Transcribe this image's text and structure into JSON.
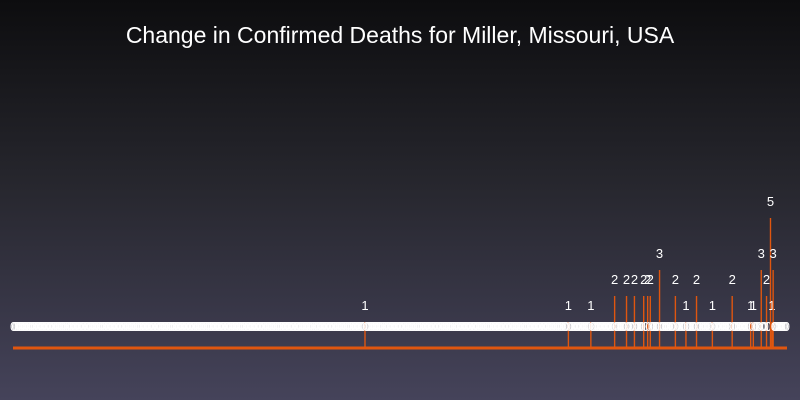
{
  "chart_data": {
    "type": "bar",
    "title": "Change in Confirmed Deaths for Miller, Missouri, USA",
    "xlabel": "",
    "ylabel": "",
    "ylim": [
      0,
      5
    ],
    "grid": false,
    "legend": "none",
    "bar_color": "#e0560f",
    "label_color": "#ffffff",
    "values": [
      0,
      0,
      0,
      0,
      0,
      0,
      0,
      0,
      0,
      0,
      0,
      0,
      0,
      0,
      0,
      0,
      0,
      0,
      0,
      0,
      0,
      0,
      0,
      0,
      0,
      0,
      0,
      0,
      0,
      0,
      0,
      0,
      0,
      0,
      0,
      0,
      0,
      0,
      0,
      0,
      0,
      0,
      0,
      0,
      0,
      0,
      0,
      0,
      0,
      0,
      0,
      0,
      0,
      0,
      0,
      0,
      0,
      0,
      0,
      0,
      0,
      0,
      0,
      0,
      0,
      0,
      0,
      0,
      0,
      0,
      0,
      0,
      0,
      0,
      0,
      0,
      0,
      0,
      0,
      0,
      0,
      0,
      0,
      0,
      0,
      0,
      0,
      0,
      0,
      0,
      0,
      0,
      0,
      0,
      0,
      0,
      0,
      0,
      0,
      0,
      0,
      0,
      0,
      0,
      0,
      0,
      0,
      0,
      0,
      0,
      0,
      0,
      0,
      0,
      0,
      0,
      0,
      0,
      0,
      0,
      0,
      0,
      0,
      0,
      0,
      0,
      0,
      0,
      0,
      0,
      0,
      0,
      0,
      0,
      0,
      0,
      0,
      0,
      0,
      0,
      0,
      0,
      0,
      0,
      0,
      0,
      0,
      0,
      0,
      0,
      0,
      0,
      0,
      0,
      0,
      0,
      0,
      0,
      0,
      0,
      0,
      0,
      0,
      0,
      0,
      0,
      0,
      0,
      0,
      0,
      0,
      0,
      0,
      0,
      0,
      0,
      0,
      0,
      0,
      0,
      0,
      0,
      0,
      0,
      0,
      0,
      0,
      0,
      0,
      0,
      0,
      0,
      0,
      0,
      0,
      0,
      0,
      0,
      0,
      0,
      0,
      0,
      0,
      0,
      0,
      0,
      0,
      0,
      0,
      0,
      0,
      0,
      0,
      0,
      0,
      0,
      0,
      0,
      0,
      0,
      0,
      0,
      0,
      0,
      0,
      0,
      0,
      0,
      0,
      0,
      0,
      0,
      0,
      0,
      0,
      0,
      0,
      0,
      0,
      0,
      0,
      0,
      0,
      0,
      0,
      0,
      0,
      0,
      0,
      0,
      0,
      0,
      0,
      0,
      0,
      0,
      0,
      0,
      0,
      0,
      0,
      0,
      0,
      0,
      0,
      0,
      1,
      0,
      0,
      0,
      0,
      0,
      0,
      0,
      0,
      0,
      0,
      0,
      0,
      0,
      0,
      0,
      0,
      0,
      0,
      0,
      0,
      0,
      0,
      0,
      0,
      0,
      0,
      0,
      0,
      0,
      0,
      0,
      0,
      0,
      0,
      0,
      0,
      0,
      0,
      0,
      0,
      0,
      0,
      0,
      0,
      0,
      0,
      0,
      0,
      0,
      0,
      0,
      0,
      0,
      0,
      0,
      0,
      0,
      0,
      0,
      0,
      0,
      0,
      0,
      0,
      0,
      0,
      0,
      0,
      0,
      0,
      0,
      0,
      0,
      0,
      0,
      0,
      0,
      0,
      0,
      0,
      0,
      0,
      0,
      0,
      0,
      0,
      0,
      0,
      0,
      0,
      0,
      0,
      0,
      0,
      0,
      0,
      0,
      0,
      0,
      0,
      0,
      0,
      0,
      0,
      0,
      0,
      0,
      0,
      0,
      0,
      0,
      0,
      0,
      0,
      0,
      0,
      0,
      0,
      0,
      0,
      0,
      0,
      0,
      0,
      0,
      0,
      0,
      0,
      0,
      0,
      0,
      0,
      0,
      0,
      0,
      0,
      0,
      0,
      0,
      0,
      0,
      0,
      0,
      0,
      0,
      0,
      0,
      0,
      0,
      0,
      0,
      0,
      0,
      1,
      0,
      0,
      0,
      0,
      0,
      0,
      0,
      0,
      0,
      0,
      0,
      0,
      0,
      0,
      0,
      0,
      1,
      0,
      0,
      0,
      0,
      0,
      0,
      0,
      0,
      0,
      0,
      0,
      0,
      0,
      0,
      0,
      0,
      0,
      2,
      0,
      0,
      0,
      0,
      0,
      0,
      0,
      0,
      2,
      0,
      0,
      0,
      0,
      0,
      2,
      0,
      0,
      0,
      0,
      0,
      0,
      2,
      0,
      0,
      2,
      0,
      2,
      0,
      0,
      0,
      0,
      0,
      0,
      3,
      0,
      0,
      0,
      0,
      0,
      0,
      0,
      0,
      0,
      0,
      0,
      2,
      0,
      0,
      0,
      0,
      0,
      0,
      0,
      1,
      0,
      0,
      0,
      0,
      0,
      0,
      0,
      2,
      0,
      0,
      0,
      0,
      0,
      0,
      0,
      0,
      0,
      0,
      0,
      1,
      0,
      0,
      0,
      0,
      0,
      0,
      0,
      0,
      0,
      0,
      0,
      0,
      0,
      0,
      2,
      0,
      0,
      0,
      0,
      0,
      0,
      0,
      0,
      0,
      0,
      0,
      0,
      0,
      1,
      0,
      1,
      0,
      0,
      0,
      0,
      0,
      3,
      0,
      0,
      0,
      2,
      0,
      0,
      5,
      1,
      3,
      0,
      0,
      0,
      0,
      0,
      0,
      0,
      0,
      0,
      0
    ]
  }
}
